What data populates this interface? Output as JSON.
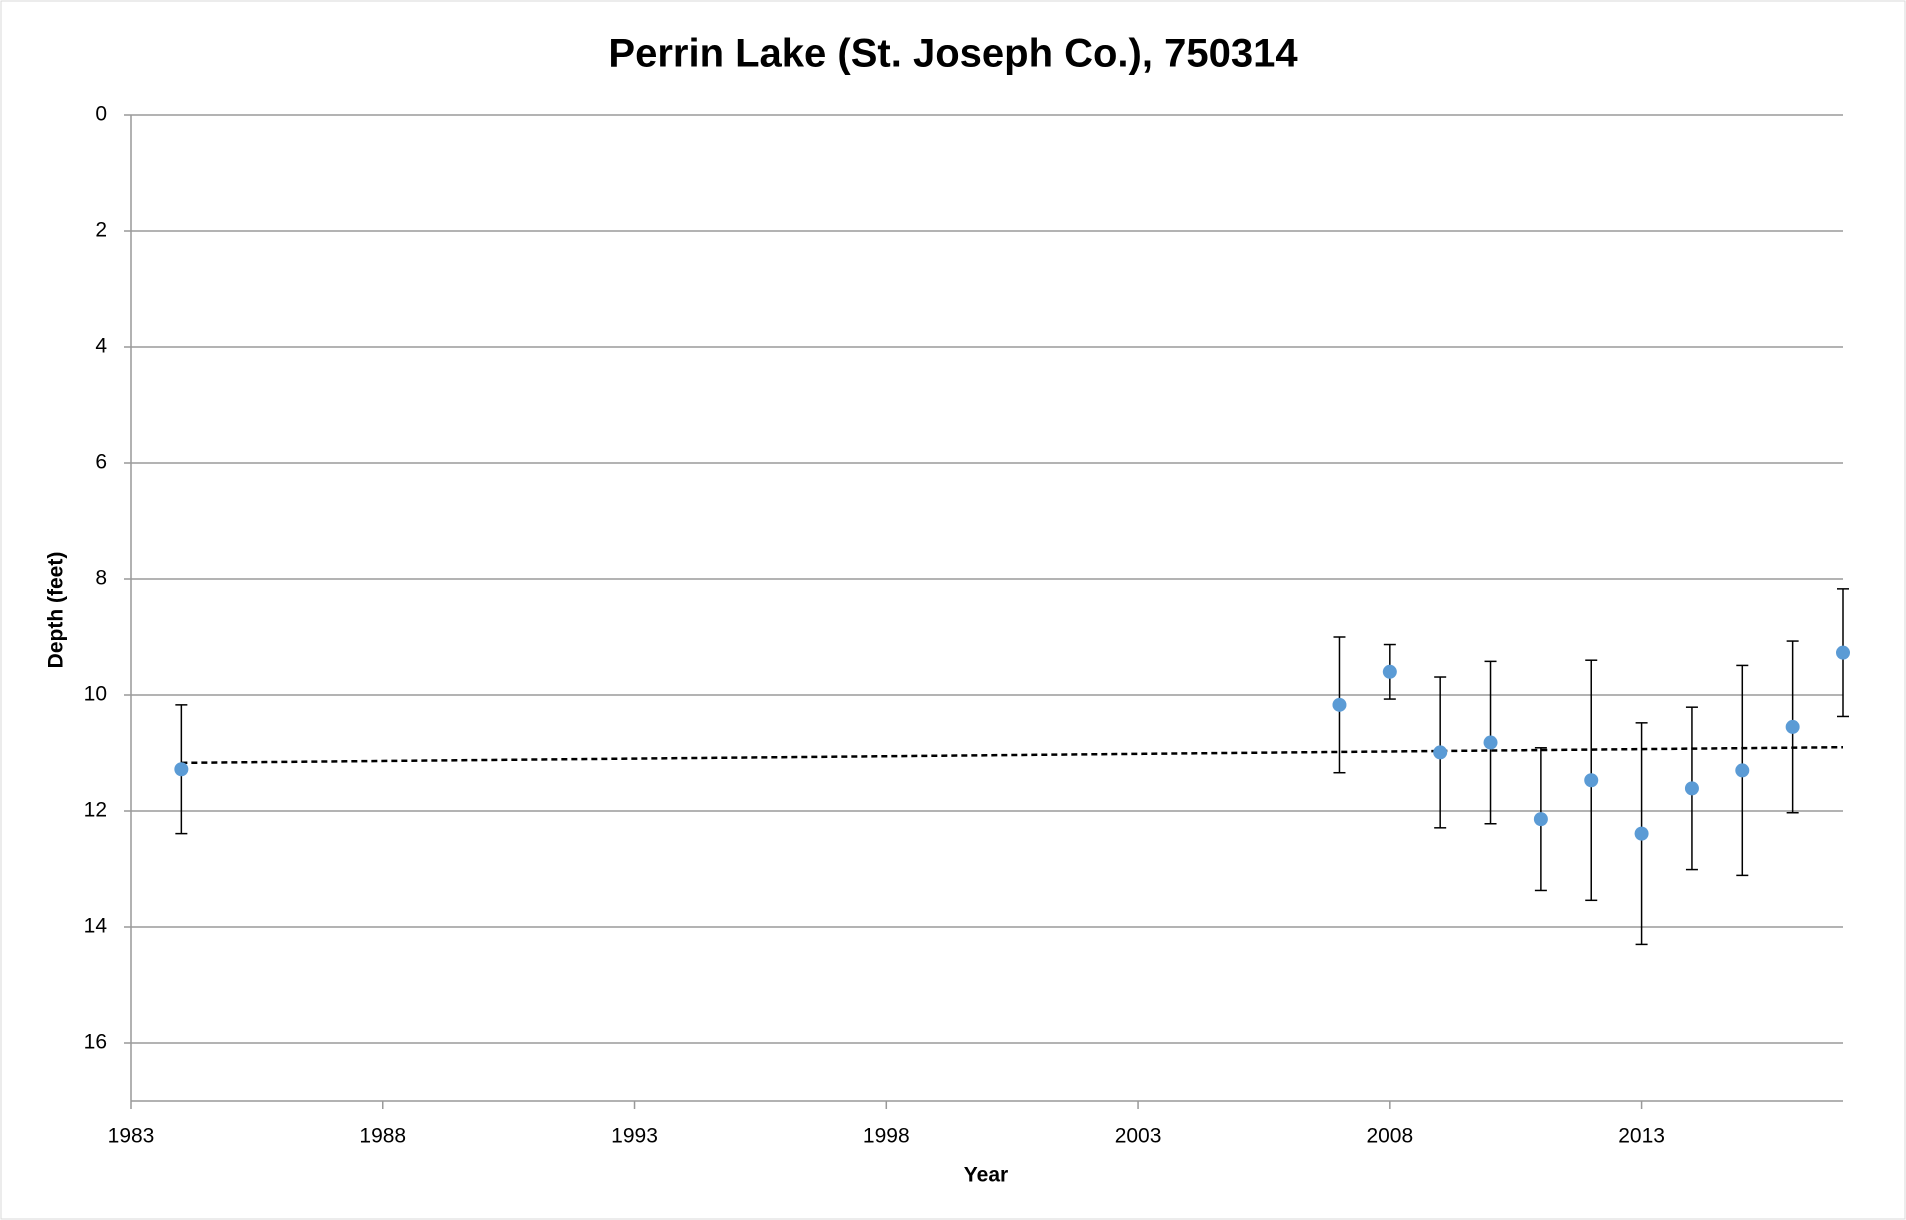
{
  "chart_data": {
    "type": "scatter",
    "title": "Perrin Lake (St. Joseph Co.), 750314",
    "x_label": "Year",
    "y_label": "Depth (feet)",
    "x": [
      1984,
      2007,
      2008,
      2009,
      2010,
      2011,
      2012,
      2013,
      2014,
      2015,
      2016,
      2017
    ],
    "series": [
      {
        "color": "#5b9bd5",
        "values": [
          11.28,
          10.17,
          9.6,
          10.99,
          10.82,
          12.14,
          11.47,
          12.39,
          11.61,
          11.3,
          10.55,
          9.27
        ],
        "errors": [
          1.11,
          1.17,
          0.47,
          1.3,
          1.4,
          1.23,
          2.07,
          1.91,
          1.4,
          1.81,
          1.48,
          1.1
        ]
      }
    ],
    "trendline": {
      "x": [
        1984,
        2017
      ],
      "values": [
        11.17,
        10.9
      ]
    },
    "xlim": [
      1983,
      2017
    ],
    "xticks": [
      1983,
      1988,
      1993,
      1998,
      2003,
      2008,
      2013
    ],
    "ylim": [
      0,
      17
    ],
    "yticks": [
      0,
      2,
      4,
      6,
      8,
      10,
      12,
      14,
      16
    ],
    "y_inverted": true,
    "grid": true
  }
}
